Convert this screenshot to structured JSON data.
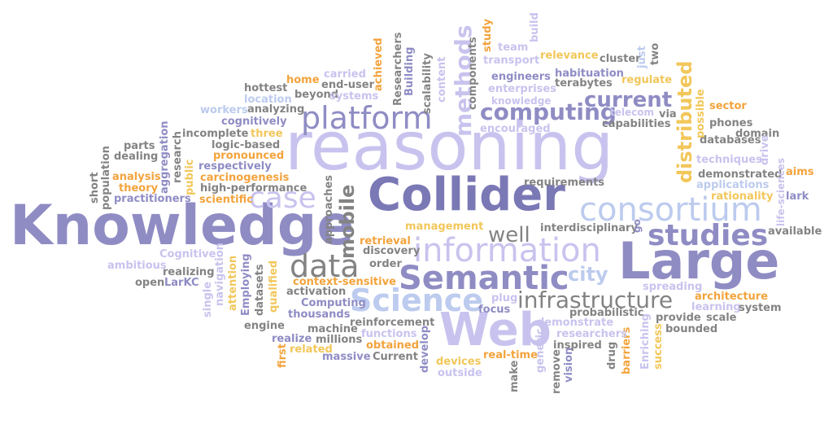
{
  "palette": {
    "lavender": "#c8c3ee",
    "lightblue": "#bccbee",
    "purple": "#8f8cc4",
    "darkpurple": "#7b78b6",
    "gray": "#838383",
    "darkgray": "#6e6e6e",
    "orange": "#f3a33c",
    "yellow": "#f2c75a"
  },
  "words": {
    "reasoning": "reasoning",
    "Knowledge": "Knowledge",
    "Large": "Large",
    "Collider": "Collider",
    "Web": "Web",
    "consortium": "consortium",
    "information": "information",
    "Semantic": "Semantic",
    "Science": "Science",
    "platform": "platform",
    "data": "data",
    "studies": "studies",
    "case": "case",
    "infrastructure": "infrastructure",
    "computing": "computing",
    "current": "current",
    "methods": "methods",
    "distributed": "distributed",
    "mobile": "mobile",
    "well": "well",
    "city": "city",
    "team": "team",
    "transport": "transport",
    "relevance": "relevance",
    "cluster": "cluster",
    "two": "two",
    "just": "just",
    "build": "build",
    "study": "study",
    "achieved": "achieved",
    "Researchers": "Researchers",
    "Building": "Building",
    "scalability": "scalability",
    "content": "content",
    "components": "components",
    "engineers": "engineers",
    "habituation": "habituation",
    "regulate": "regulate",
    "enterprises": "enterprises",
    "terabytes": "terabytes",
    "knowledge": "knowledge",
    "carried": "carried",
    "home": "home",
    "end-user": "end-user",
    "hottest": "hottest",
    "beyond": "beyond",
    "systems": "systems",
    "location": "location",
    "workers": "workers",
    "analyzing": "analyzing",
    "cognitively": "cognitively",
    "three": "three",
    "incomplete": "incomplete",
    "logic-based": "logic-based",
    "pronounced": "pronounced",
    "respectively": "respectively",
    "carcinogenesis": "carcinogenesis",
    "high-performance": "high-performance",
    "scientific": "scientific",
    "parts": "parts",
    "dealing": "dealing",
    "analysis": "analysis",
    "theory": "theory",
    "practitioners": "practitioners",
    "aggregation": "aggregation",
    "research": "research",
    "public": "public",
    "short": "short",
    "population": "population",
    "telecom": "telecom",
    "via": "via",
    "capabilities": "capabilities",
    "sector": "sector",
    "possible": "possible",
    "phones": "phones",
    "domain": "domain",
    "databases": "databases",
    "drive": "drive",
    "techniques": "techniques",
    "aims": "aims",
    "demonstrated": "demonstrated",
    "applications": "applications",
    "rationality": "rationality",
    "lark": "lark",
    "life-sciences": "life-sciences",
    "available": "available",
    "requirements": "requirements",
    "interdisciplinary": "interdisciplinary",
    "go": "go",
    "encouraged": "encouraged",
    "approaches": "approaches",
    "management": "management",
    "retrieval": "retrieval",
    "discovery": "discovery",
    "order": "order",
    "Cognitive": "Cognitive",
    "ambitious": "ambitious",
    "realizing": "realizing",
    "open": "open",
    "LarKC": "LarKC",
    "navigation": "navigation",
    "attention": "attention",
    "single": "single",
    "Employing": "Employing",
    "datasets": "datasets",
    "qualified": "qualified",
    "context-sensitive": "context-sensitive",
    "activation": "activation",
    "Computing": "Computing",
    "thousands": "thousands",
    "engine": "engine",
    "machine": "machine",
    "reinforcement": "reinforcement",
    "realize": "realize",
    "millions": "millions",
    "functions": "functions",
    "first": "first",
    "related": "related",
    "obtained": "obtained",
    "massive": "massive",
    "Current": "Current",
    "develop": "develop",
    "devices": "devices",
    "outside": "outside",
    "real-time": "real-time",
    "make": "make",
    "generic": "generic",
    "remove": "remove",
    "vision": "vision",
    "inspired": "inspired",
    "drug": "drug",
    "barriers": "barriers",
    "Enriching": "Enriching",
    "success": "success",
    "researchers": "researchers",
    "demonstrate": "demonstrate",
    "plug": "plug",
    "focus": "focus",
    "probabilistic": "probabilistic",
    "provide": "provide",
    "scale": "scale",
    "bounded": "bounded",
    "spreading": "spreading",
    "architecture": "architecture",
    "learning": "learning",
    "system": "system"
  }
}
